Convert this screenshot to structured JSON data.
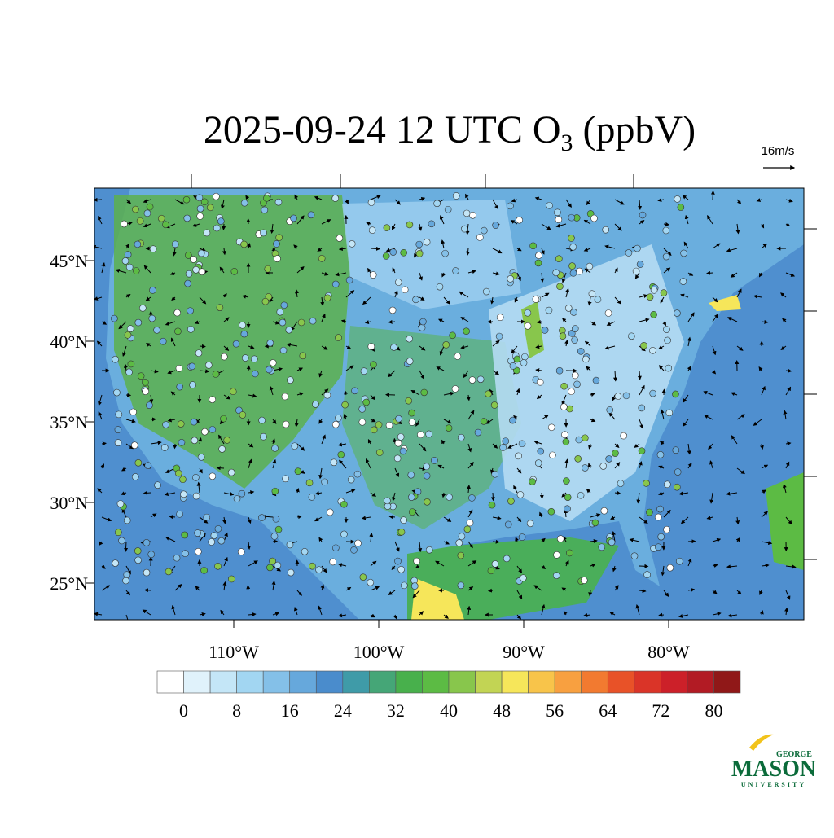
{
  "map": {
    "title": {
      "text": "2025-09-24 12 UTC O",
      "subscript": "3",
      "suffix": " (ppbV)"
    },
    "wind_scale": "16m/s",
    "lat_labels": [
      "45°N",
      "40°N",
      "35°N",
      "30°N",
      "25°N"
    ],
    "lon_labels": [
      "110°W",
      "100°W",
      "90°W",
      "80°W"
    ],
    "colorbar": {
      "range": [
        -4,
        84
      ],
      "colors": [
        "#ffffff",
        "#e0f2fb",
        "#c4e6f7",
        "#a2d6f2",
        "#84c0e8",
        "#66a8dc",
        "#4a8ccc",
        "#3f9ba8",
        "#45a677",
        "#48b04c",
        "#5cbb44",
        "#88c64c",
        "#c2d454",
        "#f6e65a",
        "#f8c44a",
        "#f8a040",
        "#f27a30",
        "#e85228",
        "#da3428",
        "#cc2029",
        "#b21b24",
        "#901818"
      ],
      "ticks": [
        0,
        8,
        16,
        24,
        32,
        40,
        48,
        56,
        64,
        72,
        80
      ]
    },
    "logo": {
      "top": "GEORGE",
      "main": "MASON",
      "bottom": "UNIVERSITY"
    }
  }
}
